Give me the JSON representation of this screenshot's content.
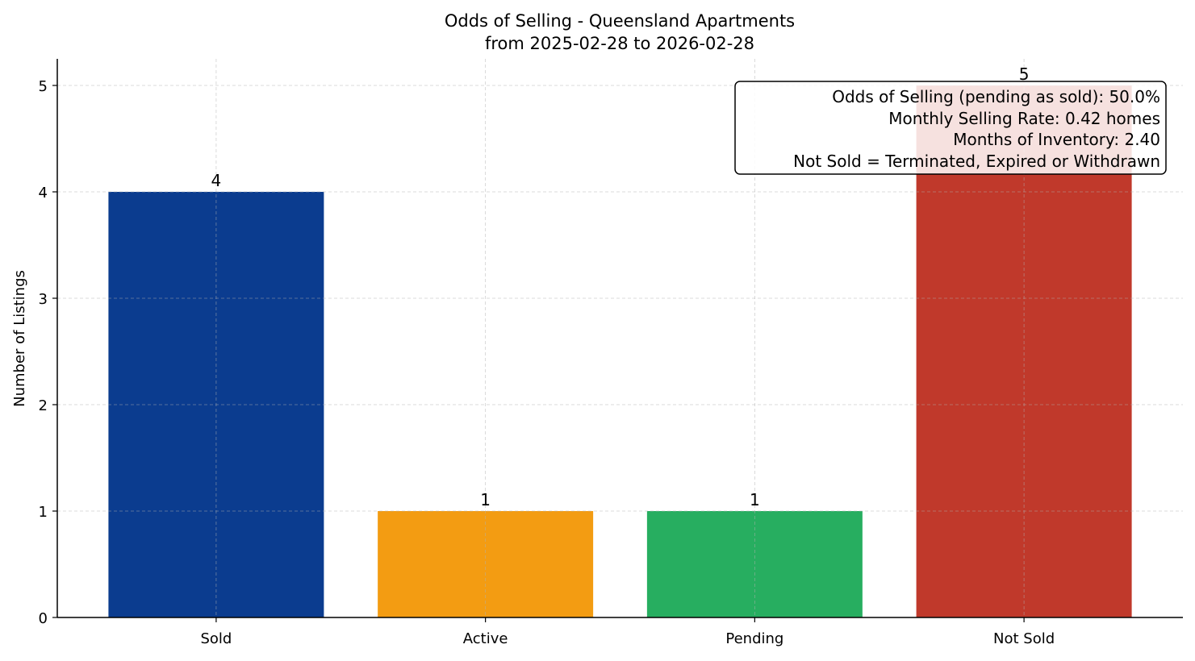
{
  "chart_data": {
    "type": "bar",
    "title": "Odds of Selling - Queensland Apartments",
    "subtitle": "from 2025-02-28 to 2026-02-28",
    "xlabel": "",
    "ylabel": "Number of Listings",
    "categories": [
      "Sold",
      "Active",
      "Pending",
      "Not Sold"
    ],
    "values": [
      4,
      1,
      1,
      5
    ],
    "data_labels": [
      "4",
      "1",
      "1",
      "5"
    ],
    "colors": [
      "#0b3c8f",
      "#f39c12",
      "#27ae60",
      "#c0392b"
    ],
    "ylim": [
      0,
      5.25
    ],
    "yticks": [
      0,
      1,
      2,
      3,
      4,
      5
    ],
    "grid": true,
    "annotation": {
      "placement": "top-right",
      "lines": [
        "Odds of Selling (pending as sold): 50.0%",
        "Monthly Selling Rate: 0.42 homes",
        "Months of Inventory: 2.40",
        "Not Sold = Terminated, Expired or Withdrawn"
      ]
    }
  }
}
